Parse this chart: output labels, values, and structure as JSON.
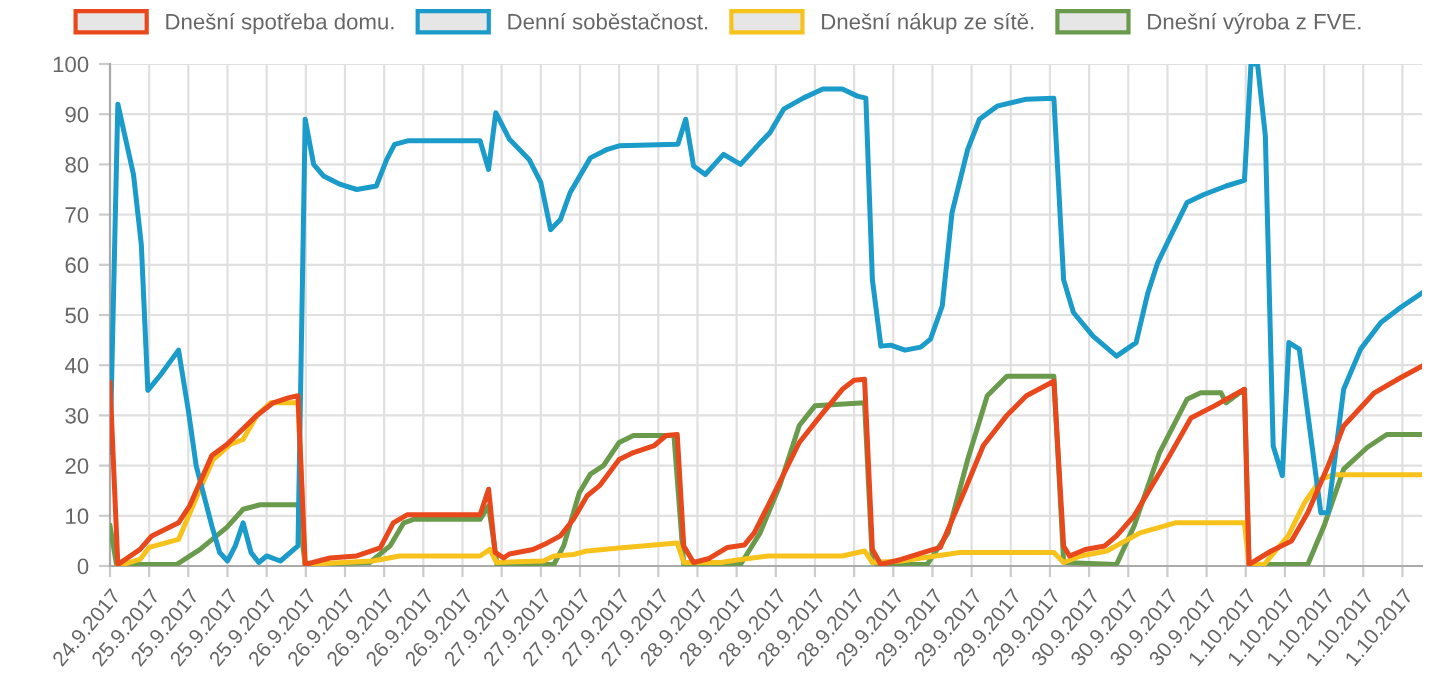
{
  "chart_data": {
    "type": "line",
    "ylim": [
      0,
      100
    ],
    "yticks": [
      0,
      10,
      20,
      30,
      40,
      50,
      60,
      70,
      80,
      90,
      100
    ],
    "xlim": [
      "2017-09-24T23:30",
      "2017-10-01T23:00"
    ],
    "xticks": [
      {
        "value": "2017-09-24T23:30",
        "label": "24.9.2017"
      },
      {
        "value": "2017-09-25T04:30",
        "label": "25.9.2017"
      },
      {
        "value": "2017-09-25T09:30",
        "label": "25.9.2017"
      },
      {
        "value": "2017-09-25T14:30",
        "label": "25.9.2017"
      },
      {
        "value": "2017-09-25T19:30",
        "label": "25.9.2017"
      },
      {
        "value": "2017-09-26T00:30",
        "label": "26.9.2017"
      },
      {
        "value": "2017-09-26T05:30",
        "label": "26.9.2017"
      },
      {
        "value": "2017-09-26T10:30",
        "label": "26.9.2017"
      },
      {
        "value": "2017-09-26T15:30",
        "label": "26.9.2017"
      },
      {
        "value": "2017-09-26T20:30",
        "label": "26.9.2017"
      },
      {
        "value": "2017-09-27T01:30",
        "label": "27.9.2017"
      },
      {
        "value": "2017-09-27T06:30",
        "label": "27.9.2017"
      },
      {
        "value": "2017-09-27T11:30",
        "label": "27.9.2017"
      },
      {
        "value": "2017-09-27T16:30",
        "label": "27.9.2017"
      },
      {
        "value": "2017-09-27T21:30",
        "label": "27.9.2017"
      },
      {
        "value": "2017-09-28T02:30",
        "label": "28.9.2017"
      },
      {
        "value": "2017-09-28T07:30",
        "label": "28.9.2017"
      },
      {
        "value": "2017-09-28T12:30",
        "label": "28.9.2017"
      },
      {
        "value": "2017-09-28T17:30",
        "label": "28.9.2017"
      },
      {
        "value": "2017-09-28T22:30",
        "label": "28.9.2017"
      },
      {
        "value": "2017-09-29T03:30",
        "label": "29.9.2017"
      },
      {
        "value": "2017-09-29T08:30",
        "label": "29.9.2017"
      },
      {
        "value": "2017-09-29T13:30",
        "label": "29.9.2017"
      },
      {
        "value": "2017-09-29T18:30",
        "label": "29.9.2017"
      },
      {
        "value": "2017-09-29T23:30",
        "label": "29.9.2017"
      },
      {
        "value": "2017-09-30T04:30",
        "label": "30.9.2017"
      },
      {
        "value": "2017-09-30T09:30",
        "label": "30.9.2017"
      },
      {
        "value": "2017-09-30T14:30",
        "label": "30.9.2017"
      },
      {
        "value": "2017-09-30T19:30",
        "label": "30.9.2017"
      },
      {
        "value": "2017-10-01T00:30",
        "label": "1.10.2017"
      },
      {
        "value": "2017-10-01T05:30",
        "label": "1.10.2017"
      },
      {
        "value": "2017-10-01T10:30",
        "label": "1.10.2017"
      },
      {
        "value": "2017-10-01T15:30",
        "label": "1.10.2017"
      },
      {
        "value": "2017-10-01T20:30",
        "label": "1.10.2017"
      }
    ],
    "grid": true,
    "legend": "top",
    "marker": "none",
    "line_style": "solid",
    "series": [
      {
        "name": "Dnešní spotřeba domu.",
        "color": "#e8481c",
        "x": [
          "2017-09-24T23:30",
          "2017-09-25T00:30",
          "2017-09-25T03:20",
          "2017-09-25T04:50",
          "2017-09-25T08:15",
          "2017-09-25T09:40",
          "2017-09-25T12:30",
          "2017-09-25T14:25",
          "2017-09-25T16:00",
          "2017-09-25T18:15",
          "2017-09-25T20:20",
          "2017-09-25T22:15",
          "2017-09-25T23:30",
          "2017-09-26T00:25",
          "2017-09-26T03:35",
          "2017-09-26T07:00",
          "2017-09-26T10:00",
          "2017-09-26T11:40",
          "2017-09-26T13:25",
          "2017-09-26T22:45",
          "2017-09-26T23:50",
          "2017-09-27T00:40",
          "2017-09-27T01:45",
          "2017-09-27T02:30",
          "2017-09-27T05:30",
          "2017-09-27T07:20",
          "2017-09-27T09:00",
          "2017-09-27T10:40",
          "2017-09-27T12:25",
          "2017-09-27T14:00",
          "2017-09-27T16:30",
          "2017-09-27T18:20",
          "2017-09-27T21:00",
          "2017-09-27T22:30",
          "2017-09-27T23:55",
          "2017-09-28T00:45",
          "2017-09-28T02:00",
          "2017-09-28T04:00",
          "2017-09-28T06:20",
          "2017-09-28T08:30",
          "2017-09-28T09:45",
          "2017-09-28T11:30",
          "2017-09-28T15:30",
          "2017-09-28T18:15",
          "2017-09-28T21:00",
          "2017-09-28T22:30",
          "2017-09-28T23:50",
          "2017-09-29T00:50",
          "2017-09-29T01:55",
          "2017-09-29T04:30",
          "2017-09-29T08:00",
          "2017-09-29T09:30",
          "2017-09-29T12:30",
          "2017-09-29T15:00",
          "2017-09-29T18:00",
          "2017-09-29T20:30",
          "2017-09-30T00:00",
          "2017-09-30T01:15",
          "2017-09-30T02:00",
          "2017-09-30T04:00",
          "2017-09-30T06:30",
          "2017-09-30T08:00",
          "2017-09-30T10:15",
          "2017-09-30T14:30",
          "2017-09-30T17:30",
          "2017-09-30T20:30",
          "2017-10-01T00:20",
          "2017-10-01T00:55",
          "2017-10-01T03:45",
          "2017-10-01T06:20",
          "2017-10-01T08:25",
          "2017-10-01T11:00",
          "2017-10-01T13:00",
          "2017-10-01T16:55",
          "2017-10-01T20:15",
          "2017-10-01T23:00"
        ],
        "values": [
          36.5,
          0.3,
          3.3,
          6,
          8.6,
          12,
          22,
          24.2,
          26.6,
          30,
          32.5,
          33.5,
          33.9,
          0.3,
          1.6,
          2,
          3.6,
          8.6,
          10.2,
          10.2,
          15.3,
          2.7,
          1.6,
          2.4,
          3.3,
          4.6,
          6,
          9.3,
          14,
          16,
          21.2,
          22.6,
          24,
          26,
          26.2,
          4,
          0.7,
          1.5,
          3.7,
          4.2,
          6.6,
          12,
          24.6,
          30,
          35.2,
          37,
          37.2,
          3.3,
          0.3,
          1.3,
          3,
          3.7,
          14.6,
          24,
          30,
          33.9,
          36.8,
          4,
          2,
          3.3,
          4,
          6,
          10,
          21.2,
          29.5,
          31.9,
          35.2,
          0.3,
          3,
          5,
          10.6,
          19.9,
          27.9,
          34.5,
          37.5,
          39.8
        ]
      },
      {
        "name": "Denní soběstačnost.",
        "color": "#1a9bca",
        "x": [
          "2017-09-24T23:30",
          "2017-09-25T00:30",
          "2017-09-25T02:30",
          "2017-09-25T03:30",
          "2017-09-25T04:20",
          "2017-09-25T05:55",
          "2017-09-25T08:15",
          "2017-09-25T09:30",
          "2017-09-25T10:30",
          "2017-09-25T12:30",
          "2017-09-25T13:30",
          "2017-09-25T14:30",
          "2017-09-25T15:30",
          "2017-09-25T16:30",
          "2017-09-25T17:30",
          "2017-09-25T18:30",
          "2017-09-25T19:30",
          "2017-09-25T21:15",
          "2017-09-25T23:30",
          "2017-09-26T00:25",
          "2017-09-26T01:30",
          "2017-09-26T02:45",
          "2017-09-26T04:55",
          "2017-09-26T07:00",
          "2017-09-26T09:30",
          "2017-09-26T10:50",
          "2017-09-26T11:50",
          "2017-09-26T13:30",
          "2017-09-26T22:45",
          "2017-09-26T23:50",
          "2017-09-27T00:45",
          "2017-09-27T02:30",
          "2017-09-27T05:00",
          "2017-09-27T06:30",
          "2017-09-27T07:45",
          "2017-09-27T09:00",
          "2017-09-27T10:15",
          "2017-09-27T12:50",
          "2017-09-27T15:00",
          "2017-09-27T16:30",
          "2017-09-28T00:00",
          "2017-09-28T01:00",
          "2017-09-28T02:00",
          "2017-09-28T03:30",
          "2017-09-28T04:30",
          "2017-09-28T05:50",
          "2017-09-28T08:00",
          "2017-09-28T10:30",
          "2017-09-28T11:45",
          "2017-09-28T13:30",
          "2017-09-28T16:00",
          "2017-09-28T18:30",
          "2017-09-28T21:00",
          "2017-09-28T22:55",
          "2017-09-29T00:00",
          "2017-09-29T00:50",
          "2017-09-29T01:55",
          "2017-09-29T03:10",
          "2017-09-29T05:00",
          "2017-09-29T07:00",
          "2017-09-29T08:15",
          "2017-09-29T09:45",
          "2017-09-29T11:00",
          "2017-09-29T13:00",
          "2017-09-29T14:30",
          "2017-09-29T16:45",
          "2017-09-29T20:30",
          "2017-09-30T00:00",
          "2017-09-30T01:15",
          "2017-09-30T02:30",
          "2017-09-30T05:00",
          "2017-09-30T08:00",
          "2017-09-30T10:30",
          "2017-09-30T12:00",
          "2017-09-30T13:15",
          "2017-09-30T14:30",
          "2017-09-30T17:00",
          "2017-09-30T19:10",
          "2017-09-30T22:00",
          "2017-10-01T00:20",
          "2017-10-01T01:10",
          "2017-10-01T02:00",
          "2017-10-01T03:00",
          "2017-10-01T04:00",
          "2017-10-01T05:10",
          "2017-10-01T06:00",
          "2017-10-01T07:20",
          "2017-10-01T10:05",
          "2017-10-01T11:00",
          "2017-10-01T13:00",
          "2017-10-01T15:10",
          "2017-10-01T17:45",
          "2017-10-01T20:15",
          "2017-10-01T23:00"
        ],
        "values": [
          22.6,
          92,
          78,
          64,
          35,
          38,
          43,
          31,
          20,
          8,
          2.7,
          1,
          4,
          8.6,
          2.7,
          0.7,
          2,
          1,
          4,
          89,
          80,
          77.7,
          76,
          75,
          75.7,
          81,
          84,
          84.7,
          84.7,
          79,
          90.3,
          85,
          81,
          76.4,
          67,
          69,
          74.4,
          81.3,
          83,
          83.7,
          84,
          89,
          79.7,
          78,
          79.7,
          82,
          80,
          84.3,
          86.3,
          91,
          93.2,
          95,
          95,
          93.6,
          93.2,
          57,
          43.8,
          44,
          43,
          43.6,
          45.2,
          51.8,
          70.4,
          83,
          89,
          91.6,
          93,
          93.2,
          57,
          50.5,
          45.8,
          41.8,
          44.5,
          54.4,
          60.4,
          64.4,
          72.4,
          74,
          75.7,
          76.8,
          100,
          100,
          85.7,
          23.9,
          18,
          44.5,
          43.2,
          10.6,
          10.6,
          35.2,
          43.2,
          48.5,
          51.5,
          54.4
        ]
      },
      {
        "name": "Dnešní nákup ze sítě.",
        "color": "#f7c21c",
        "x": [
          "2017-09-25T00:30",
          "2017-09-25T03:20",
          "2017-09-25T04:30",
          "2017-09-25T08:15",
          "2017-09-25T11:00",
          "2017-09-25T12:40",
          "2017-09-25T14:50",
          "2017-09-25T16:30",
          "2017-09-25T18:15",
          "2017-09-25T20:00",
          "2017-09-25T23:30",
          "2017-09-26T00:25",
          "2017-09-26T09:00",
          "2017-09-26T12:30",
          "2017-09-26T22:45",
          "2017-09-27T00:00",
          "2017-09-27T00:50",
          "2017-09-27T06:50",
          "2017-09-27T08:10",
          "2017-09-27T10:40",
          "2017-09-27T12:25",
          "2017-09-27T16:30",
          "2017-09-27T23:55",
          "2017-09-28T00:45",
          "2017-09-28T05:30",
          "2017-09-28T08:00",
          "2017-09-28T11:30",
          "2017-09-28T21:00",
          "2017-09-28T23:50",
          "2017-09-29T00:50",
          "2017-09-29T04:30",
          "2017-09-29T12:00",
          "2017-09-30T00:00",
          "2017-09-30T01:15",
          "2017-09-30T03:25",
          "2017-09-30T06:45",
          "2017-09-30T11:00",
          "2017-09-30T15:30",
          "2017-10-01T00:20",
          "2017-10-01T00:55",
          "2017-10-01T02:50",
          "2017-10-01T05:55",
          "2017-10-01T08:00",
          "2017-10-01T10:05",
          "2017-10-01T11:50",
          "2017-10-01T23:00"
        ],
        "values": [
          0,
          1.3,
          3.7,
          5.3,
          15.3,
          21.2,
          24.2,
          25.2,
          30,
          32.5,
          32.5,
          0.3,
          1,
          2,
          2,
          3.3,
          0.7,
          1,
          2,
          2.3,
          3,
          3.6,
          4.6,
          0.7,
          0.7,
          1.3,
          2,
          2,
          3,
          0.7,
          1,
          2.7,
          2.7,
          0.7,
          2,
          3,
          6.6,
          8.6,
          8.6,
          0.3,
          0.3,
          6,
          12.6,
          17.3,
          18.2,
          18.2
        ]
      },
      {
        "name": "Dnešní výroba z FVE.",
        "color": "#6a9a4c",
        "x": [
          "2017-09-24T23:30",
          "2017-09-25T00:20",
          "2017-09-25T08:00",
          "2017-09-25T11:00",
          "2017-09-25T14:25",
          "2017-09-25T16:30",
          "2017-09-25T18:40",
          "2017-09-25T23:30",
          "2017-09-26T00:25",
          "2017-09-26T08:40",
          "2017-09-26T11:15",
          "2017-09-26T13:00",
          "2017-09-26T14:15",
          "2017-09-26T22:45",
          "2017-09-26T23:50",
          "2017-09-27T00:55",
          "2017-09-27T08:10",
          "2017-09-27T09:25",
          "2017-09-27T11:25",
          "2017-09-27T12:50",
          "2017-09-27T14:30",
          "2017-09-27T16:30",
          "2017-09-27T18:20",
          "2017-09-27T23:30",
          "2017-09-28T00:45",
          "2017-09-28T08:00",
          "2017-09-28T10:30",
          "2017-09-28T13:00",
          "2017-09-28T15:30",
          "2017-09-28T17:30",
          "2017-09-28T23:50",
          "2017-09-29T00:50",
          "2017-09-29T01:55",
          "2017-09-29T07:50",
          "2017-09-29T10:30",
          "2017-09-29T13:00",
          "2017-09-29T15:30",
          "2017-09-29T18:00",
          "2017-09-30T00:00",
          "2017-09-30T01:15",
          "2017-09-30T08:00",
          "2017-09-30T10:15",
          "2017-09-30T13:30",
          "2017-09-30T17:00",
          "2017-09-30T18:45",
          "2017-09-30T21:20",
          "2017-09-30T22:00",
          "2017-10-01T00:20",
          "2017-10-01T00:55",
          "2017-10-01T08:25",
          "2017-10-01T10:30",
          "2017-10-01T13:00",
          "2017-10-01T16:00",
          "2017-10-01T18:30",
          "2017-10-01T23:00"
        ],
        "values": [
          8,
          0.3,
          0.3,
          3.3,
          7.7,
          11.3,
          12.2,
          12.2,
          0.3,
          0.7,
          4,
          8.6,
          9.3,
          9.3,
          12,
          0.3,
          0.3,
          4,
          14.6,
          18.3,
          20,
          24.6,
          26,
          26,
          0.3,
          0.3,
          6.6,
          16,
          28,
          31.9,
          32.5,
          0.7,
          0.3,
          0.3,
          6.6,
          21.2,
          33.9,
          37.8,
          37.8,
          0.7,
          0.3,
          8,
          22.6,
          33.2,
          34.5,
          34.5,
          32.5,
          35.2,
          0.3,
          0.3,
          8,
          19.3,
          23.6,
          26.2,
          26.2
        ]
      }
    ]
  }
}
